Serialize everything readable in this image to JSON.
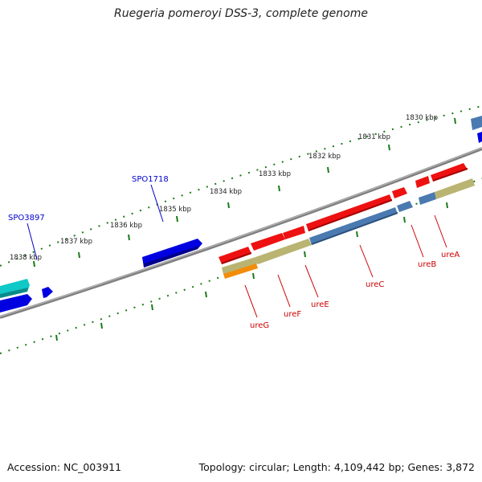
{
  "title": "Ruegeria pomeroyi DSS-3, complete genome",
  "footer": {
    "accession": "Accession: NC_003911",
    "summary": "Topology: circular; Length: 4,109,442 bp; Genes: 3,872"
  },
  "scale_labels": [
    "1830 kbp",
    "1831 kbp",
    "1832 kbp",
    "1833 kbp",
    "1834 kbp",
    "1835 kbp",
    "1836 kbp",
    "1837 kbp",
    "1838 kbp"
  ],
  "gene_labels": {
    "spo1718": "SPO1718",
    "spo3897": "SPO3897",
    "ureA": "ureA",
    "ureB": "ureB",
    "ureC": "ureC",
    "ureE": "ureE",
    "ureF": "ureF",
    "ureG": "ureG"
  },
  "colors": {
    "cds_forward": "#0000e0",
    "cds_cyan": "#11c8c8",
    "ure_red": "#ee1111",
    "ure_blue": "#4a7ab0",
    "ure_khaki": "#b9b472",
    "ure_orange": "#f28c0a",
    "backbone": "#808080",
    "tick_green": "#1a7a1a",
    "label_blue": "#0000cc",
    "label_red": "#cc0000"
  }
}
